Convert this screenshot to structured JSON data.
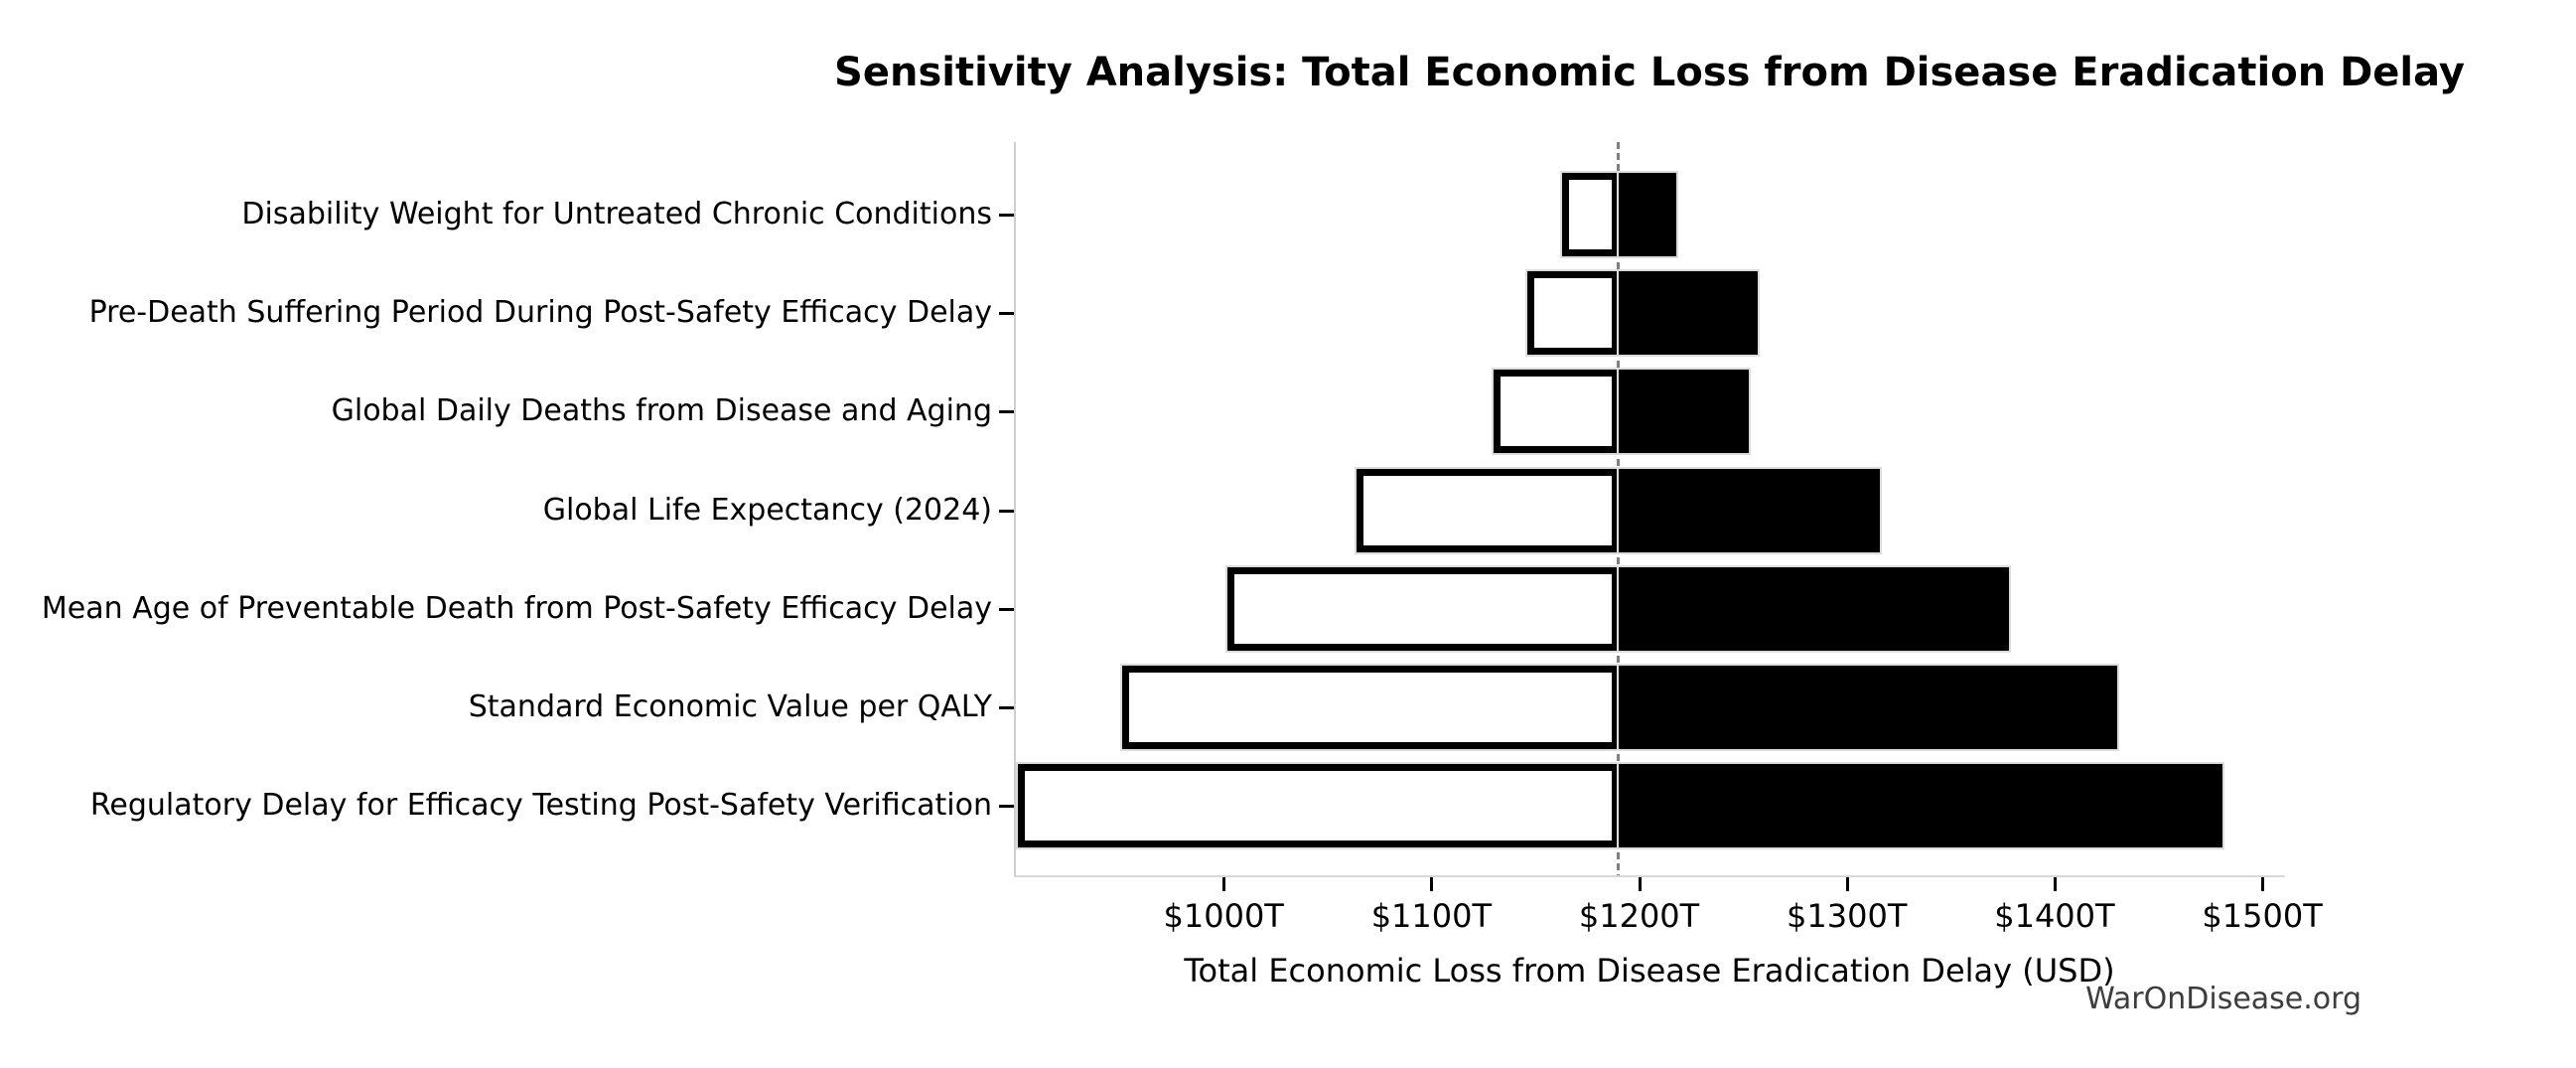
{
  "figure": {
    "watermark": "WarOnDisease.org"
  },
  "chart_data": {
    "type": "bar",
    "subtype": "tornado-sensitivity",
    "orientation": "horizontal",
    "title": "Sensitivity Analysis: Total Economic Loss from Disease Eradication Delay",
    "xlabel": "Total Economic Loss from Disease Eradication Delay (USD)",
    "unit": "trillions of USD",
    "xlim": [
      900,
      1510
    ],
    "grid": false,
    "baseline_line": {
      "x": 1190,
      "style": "dashed",
      "color": "#7f7f7f"
    },
    "x_ticks": [
      {
        "value": 1000,
        "label": "$1000T"
      },
      {
        "value": 1100,
        "label": "$1100T"
      },
      {
        "value": 1200,
        "label": "$1200T"
      },
      {
        "value": 1300,
        "label": "$1300T"
      },
      {
        "value": 1400,
        "label": "$1400T"
      },
      {
        "value": 1500,
        "label": "$1500T"
      }
    ],
    "rows": [
      {
        "label": "Disability Weight for Untreated Chronic Conditions",
        "low": 1163,
        "high": 1218
      },
      {
        "label": "Pre-Death Suffering Period During Post-Safety Efficacy Delay",
        "low": 1146,
        "high": 1257
      },
      {
        "label": "Global Daily Deaths from Disease and Aging",
        "low": 1130,
        "high": 1253
      },
      {
        "label": "Global Life Expectancy (2024)",
        "low": 1064,
        "high": 1316
      },
      {
        "label": "Mean Age of Preventable Death from Post-Safety Efficacy Delay",
        "low": 1002,
        "high": 1378
      },
      {
        "label": "Standard Economic Value per QALY",
        "low": 951,
        "high": 1430
      },
      {
        "label": "Regulatory Delay for Efficacy Testing Post-Safety Verification",
        "low": 901,
        "high": 1481
      }
    ],
    "series_colors": {
      "low": "#ffffff",
      "high": "#000000"
    }
  }
}
